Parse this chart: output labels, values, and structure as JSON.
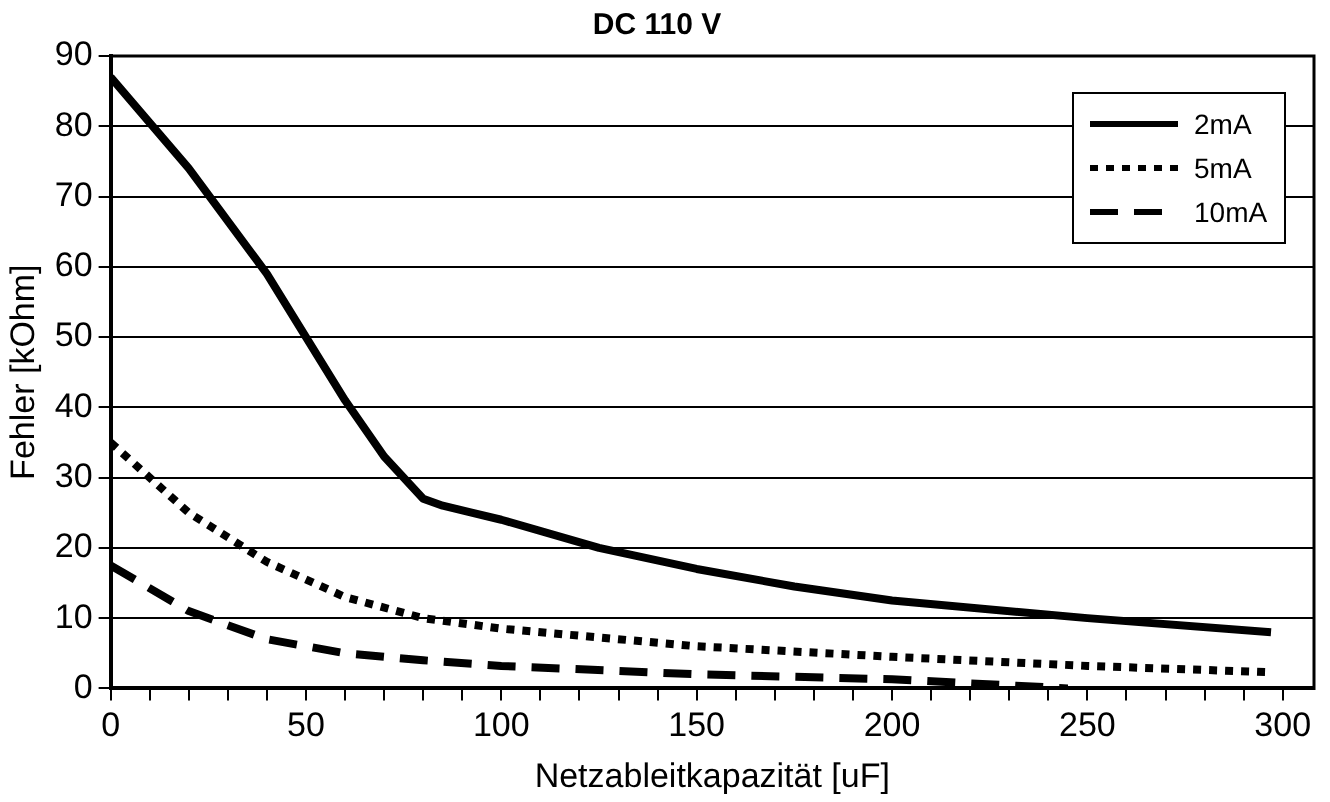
{
  "chart_data": {
    "type": "line",
    "title": "DC 110 V",
    "xlabel": "Netzableitkapazität [uF]",
    "ylabel": "Fehler [kOhm]",
    "xlim": [
      0,
      308
    ],
    "xticks": [
      0,
      {
        "value": 10,
        "label": null
      },
      {
        "value": 20,
        "label": null
      },
      {
        "value": 30,
        "label": null
      },
      {
        "value": 40,
        "label": null
      },
      50,
      {
        "value": 60,
        "label": null
      },
      {
        "value": 70,
        "label": null
      },
      {
        "value": 80,
        "label": null
      },
      {
        "value": 90,
        "label": null
      },
      100,
      {
        "value": 110,
        "label": null
      },
      {
        "value": 120,
        "label": null
      },
      {
        "value": 130,
        "label": null
      },
      {
        "value": 140,
        "label": null
      },
      150,
      {
        "value": 160,
        "label": null
      },
      {
        "value": 170,
        "label": null
      },
      {
        "value": 180,
        "label": null
      },
      {
        "value": 190,
        "label": null
      },
      200,
      {
        "value": 210,
        "label": null
      },
      {
        "value": 220,
        "label": null
      },
      {
        "value": 230,
        "label": null
      },
      {
        "value": 240,
        "label": null
      },
      250,
      {
        "value": 260,
        "label": null
      },
      {
        "value": 270,
        "label": null
      },
      {
        "value": 280,
        "label": null
      },
      {
        "value": 290,
        "label": null
      },
      300
    ],
    "ylim": [
      0,
      90
    ],
    "yticks": [
      0,
      10,
      20,
      30,
      40,
      50,
      60,
      70,
      80,
      90
    ],
    "grid": "y",
    "legend": "top right",
    "marker": "none",
    "series": [
      {
        "name": "2mA",
        "color": "#000000",
        "line_style": "solid",
        "x": [
          0,
          20,
          40,
          50,
          60,
          70,
          80,
          85,
          100,
          125,
          150,
          175,
          200,
          250,
          297
        ],
        "values": [
          87,
          74,
          59,
          50,
          41,
          33,
          27,
          26,
          24,
          20,
          17,
          14.5,
          12.5,
          10,
          8
        ]
      },
      {
        "name": "5mA",
        "color": "#000000",
        "line_style": "dotted",
        "x": [
          0,
          20,
          40,
          60,
          80,
          100,
          150,
          200,
          250,
          297
        ],
        "values": [
          35,
          25,
          18,
          13,
          10,
          8.5,
          6,
          4.5,
          3.2,
          2.3
        ]
      },
      {
        "name": "10mA",
        "color": "#000000",
        "line_style": "dashed",
        "x": [
          0,
          20,
          40,
          60,
          80,
          100,
          150,
          200,
          245
        ],
        "values": [
          17.5,
          11,
          7,
          5,
          4,
          3.2,
          2,
          1.3,
          0
        ]
      }
    ]
  }
}
